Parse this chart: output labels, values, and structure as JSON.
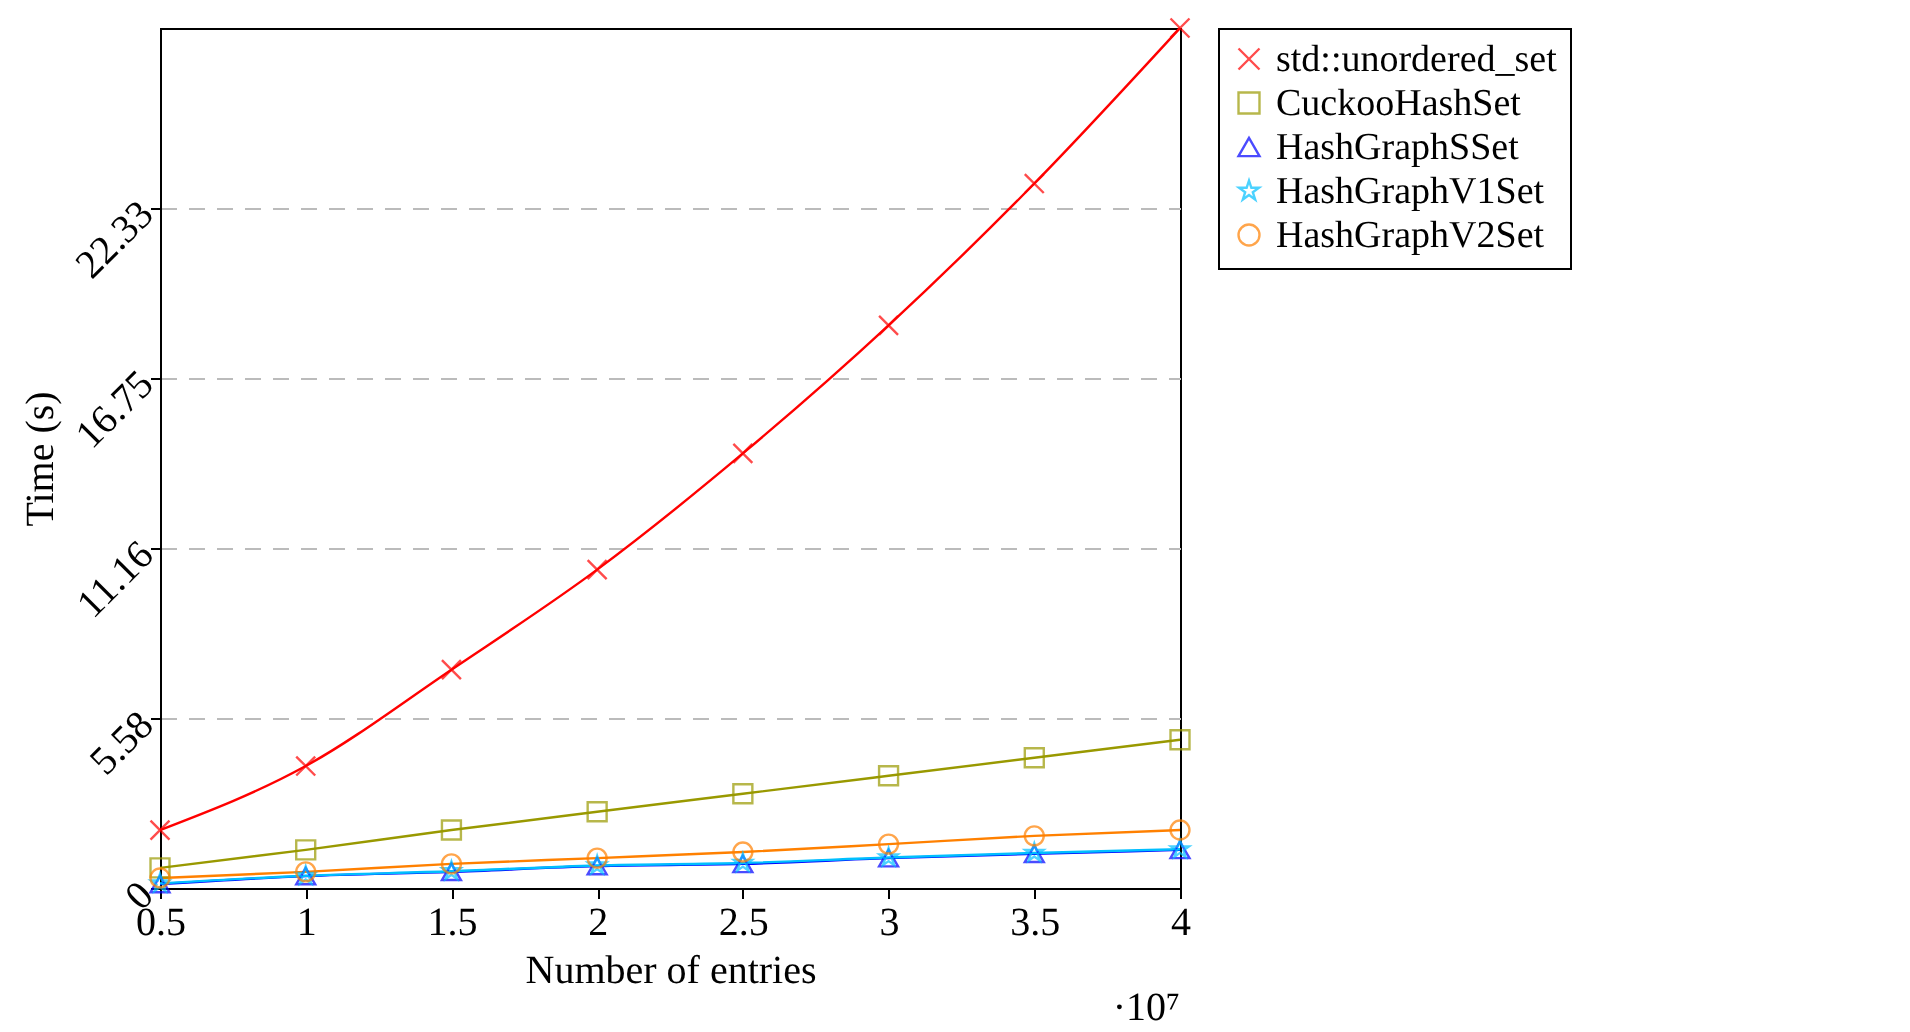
{
  "chart_data": {
    "type": "line",
    "xlabel": "Number of entries",
    "ylabel": "Time (s)",
    "x": [
      0.5,
      1,
      1.5,
      2,
      2.5,
      3,
      3.5,
      4
    ],
    "xlim": [
      0.5,
      4
    ],
    "xticks": [
      0.5,
      1,
      1.5,
      2,
      2.5,
      3,
      3.5,
      4
    ],
    "ylim": [
      0,
      28.2
    ],
    "yticks": [
      0,
      5.58,
      11.16,
      16.75,
      22.33
    ],
    "grid": "y",
    "legend": "top right",
    "line_style": "solid",
    "annotations": [
      "·10⁷"
    ],
    "series": [
      {
        "name": "std::unordered_set",
        "color": "#ff0000",
        "marker": "cross",
        "values": [
          1.9,
          4.0,
          7.16,
          10.44,
          14.25,
          18.45,
          23.1,
          28.2
        ]
      },
      {
        "name": "CuckooHashSet",
        "color": "#999900",
        "marker": "square",
        "values": [
          0.66,
          1.25,
          1.9,
          2.5,
          3.09,
          3.68,
          4.27,
          4.86
        ]
      },
      {
        "name": "HashGraphSSet",
        "color": "#0000ff",
        "marker": "triangle",
        "values": [
          0.13,
          0.39,
          0.53,
          0.72,
          0.79,
          0.98,
          1.12,
          1.25
        ]
      },
      {
        "name": "HashGraphV1Set",
        "color": "#00bfff",
        "marker": "star",
        "values": [
          0.15,
          0.4,
          0.55,
          0.74,
          0.82,
          1.0,
          1.15,
          1.27
        ]
      },
      {
        "name": "HashGraphV2Set",
        "color": "#ff8000",
        "marker": "circle",
        "values": [
          0.33,
          0.53,
          0.79,
          0.98,
          1.18,
          1.44,
          1.71,
          1.9
        ]
      }
    ]
  }
}
